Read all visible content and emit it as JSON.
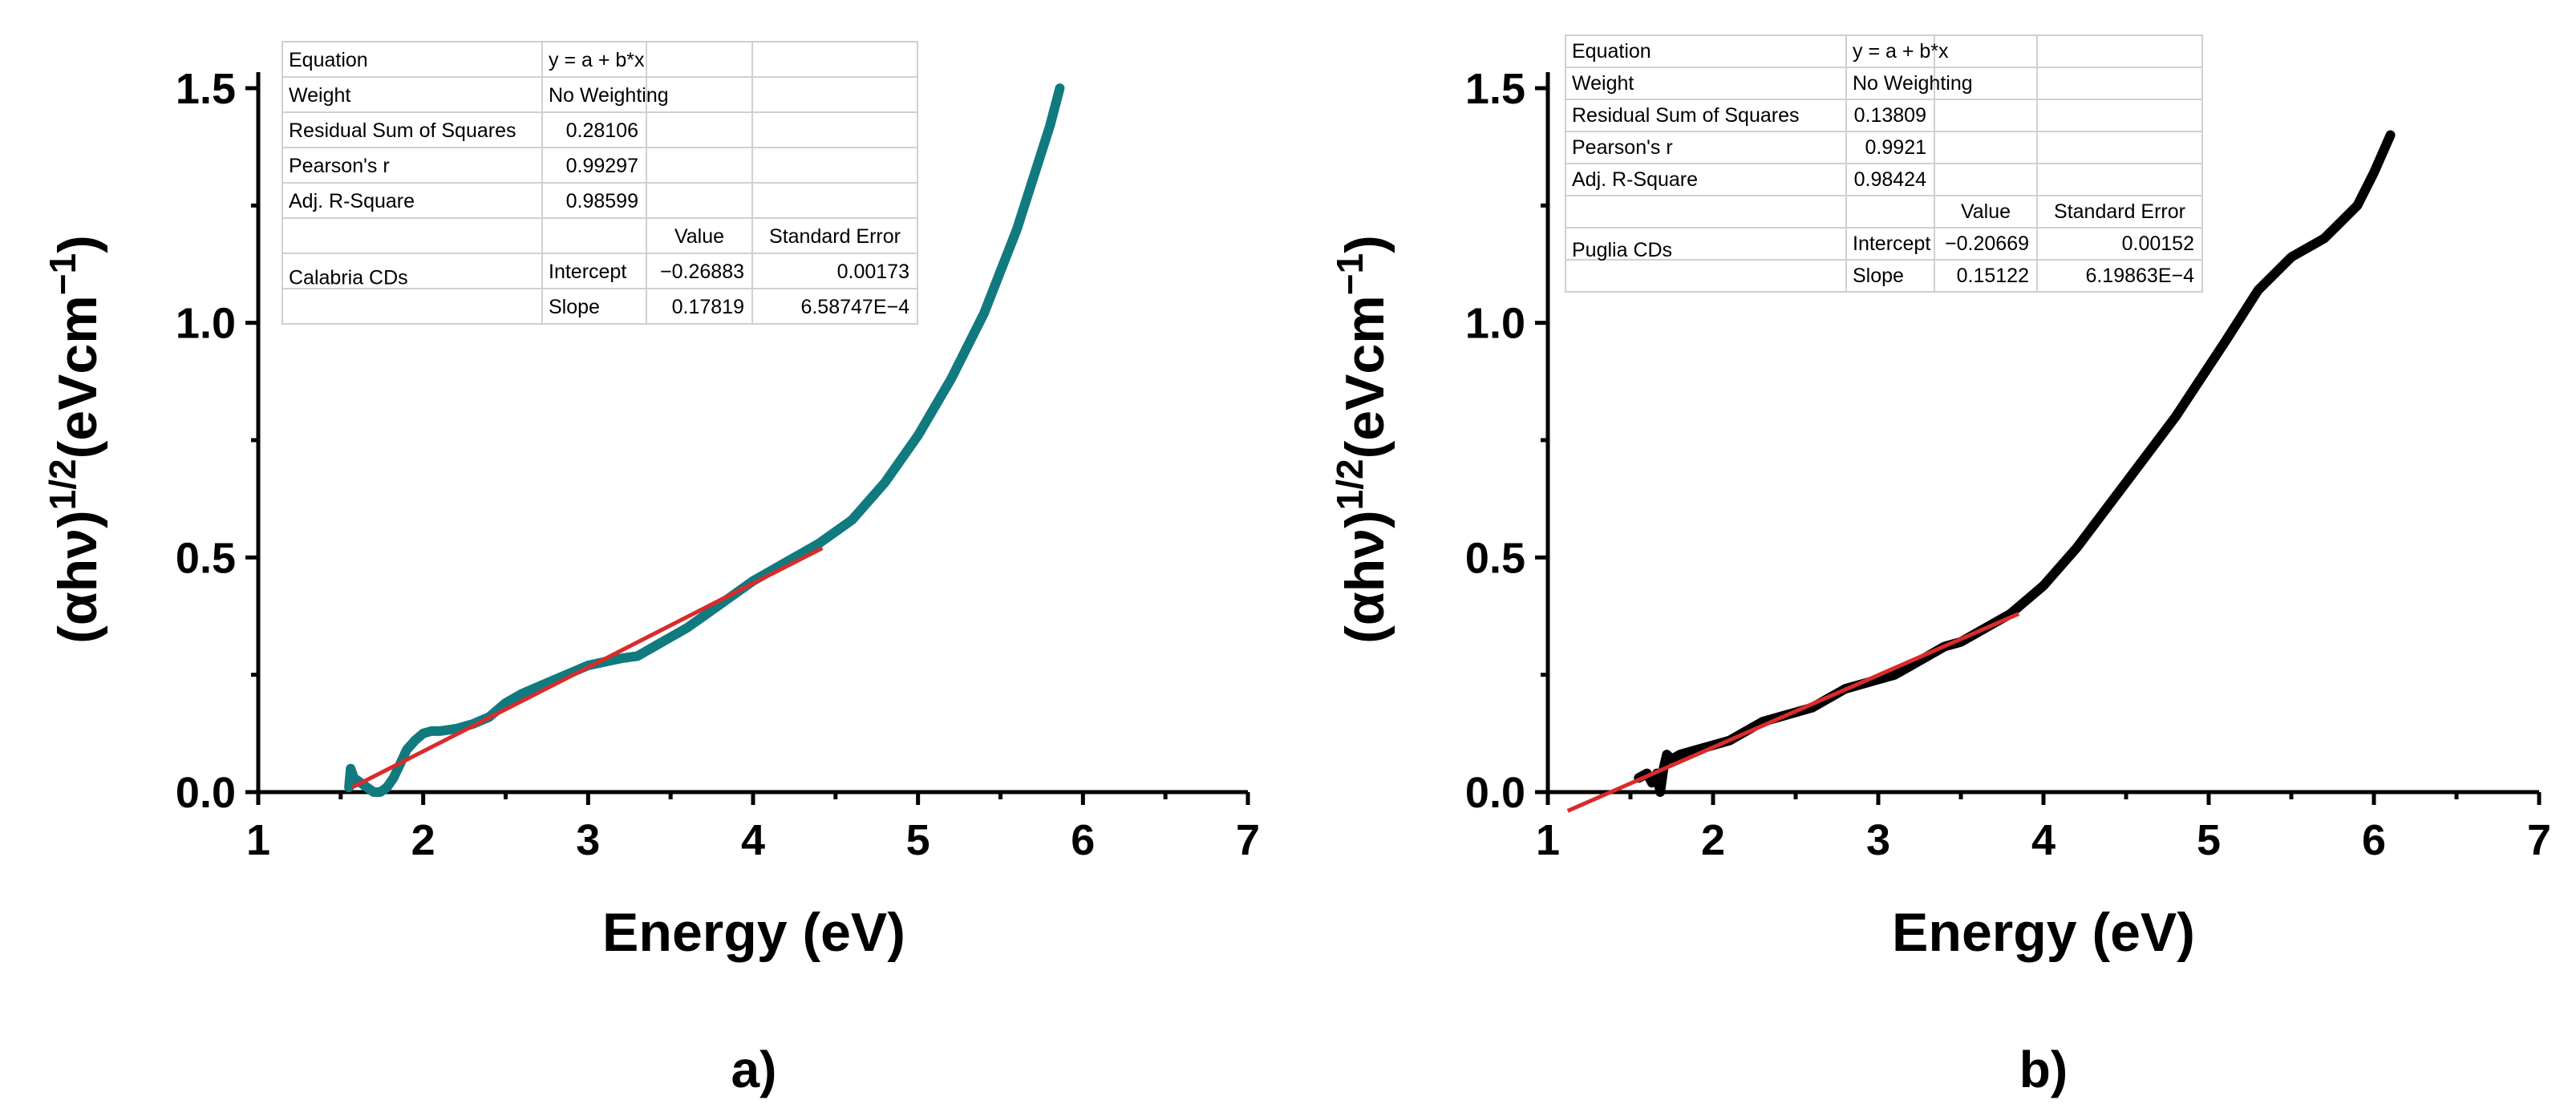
{
  "chart_data": [
    {
      "type": "line",
      "panel_label": "a)",
      "xlabel": "Energy (eV)",
      "ylabel": {
        "base": "(αhν)",
        "exp1": "1/2",
        "unit": "(eVcm",
        "exp2": "−1",
        "close": ")"
      },
      "xlim": [
        1,
        7
      ],
      "ylim": [
        0,
        1.5
      ],
      "xticks": [
        "1",
        "2",
        "3",
        "4",
        "5",
        "6",
        "7"
      ],
      "yticks": [
        "0.0",
        "0.5",
        "1.0",
        "1.5"
      ],
      "colors": {
        "data": "#117a7f",
        "fit": "#d92b2b"
      },
      "series": [
        {
          "name": "Calabria CDs",
          "x": [
            1.55,
            1.56,
            1.58,
            1.62,
            1.66,
            1.7,
            1.74,
            1.78,
            1.82,
            1.86,
            1.9,
            1.95,
            2.0,
            2.05,
            2.1,
            2.2,
            2.3,
            2.4,
            2.5,
            2.6,
            2.8,
            3.0,
            3.2,
            3.3,
            3.4,
            3.5,
            3.6,
            3.8,
            4.0,
            4.2,
            4.4,
            4.6,
            4.8,
            5.0,
            5.2,
            5.4,
            5.6,
            5.8,
            5.86
          ],
          "y": [
            0.01,
            0.05,
            0.03,
            0.02,
            0.01,
            0.0,
            0.0,
            0.01,
            0.03,
            0.06,
            0.09,
            0.11,
            0.125,
            0.13,
            0.13,
            0.135,
            0.145,
            0.16,
            0.19,
            0.21,
            0.24,
            0.27,
            0.285,
            0.29,
            0.31,
            0.33,
            0.35,
            0.4,
            0.45,
            0.49,
            0.53,
            0.58,
            0.66,
            0.76,
            0.88,
            1.02,
            1.2,
            1.42,
            1.5
          ]
        }
      ],
      "fit": {
        "x": [
          1.57,
          4.42
        ],
        "y": [
          0.01,
          0.52
        ]
      },
      "table": {
        "rows": [
          [
            "Equation",
            "y = a + b*x",
            "",
            ""
          ],
          [
            "Weight",
            "No Weighting",
            "",
            ""
          ],
          [
            "Residual Sum of Squares",
            "0.28106",
            "",
            ""
          ],
          [
            "Pearson's r",
            "0.99297",
            "",
            ""
          ],
          [
            "Adj. R-Square",
            "0.98599",
            "",
            ""
          ],
          [
            "",
            "",
            "Value",
            "Standard Error"
          ],
          [
            "Calabria CDs",
            "Intercept",
            "−0.26883",
            "0.00173"
          ],
          [
            "",
            "Slope",
            "0.17819",
            "6.58747E−4"
          ]
        ]
      }
    },
    {
      "type": "line",
      "panel_label": "b)",
      "xlabel": "Energy (eV)",
      "ylabel": {
        "base": "(αhν)",
        "exp1": "1/2",
        "unit": "(eVcm",
        "exp2": "−1",
        "close": ")"
      },
      "xlim": [
        1,
        7
      ],
      "ylim": [
        0,
        1.5
      ],
      "xticks": [
        "1",
        "2",
        "3",
        "4",
        "5",
        "6",
        "7"
      ],
      "yticks": [
        "0.0",
        "0.5",
        "1.0",
        "1.5"
      ],
      "colors": {
        "data": "#000000",
        "fit": "#d92b2b"
      },
      "series": [
        {
          "name": "Puglia CDs",
          "x": [
            1.55,
            1.6,
            1.63,
            1.66,
            1.68,
            1.7,
            1.72,
            1.75,
            1.8,
            1.9,
            2.0,
            2.1,
            2.2,
            2.3,
            2.4,
            2.5,
            2.6,
            2.7,
            2.8,
            2.9,
            3.0,
            3.1,
            3.2,
            3.3,
            3.4,
            3.5,
            3.6,
            3.8,
            4.0,
            4.2,
            4.5,
            4.8,
            5.1,
            5.3,
            5.5,
            5.7,
            5.9,
            6.0,
            6.1
          ],
          "y": [
            0.03,
            0.04,
            0.02,
            0.04,
            0.0,
            0.05,
            0.08,
            0.07,
            0.08,
            0.09,
            0.1,
            0.11,
            0.13,
            0.15,
            0.16,
            0.17,
            0.18,
            0.2,
            0.22,
            0.23,
            0.24,
            0.25,
            0.27,
            0.29,
            0.31,
            0.32,
            0.34,
            0.38,
            0.44,
            0.52,
            0.66,
            0.8,
            0.96,
            1.07,
            1.14,
            1.18,
            1.25,
            1.32,
            1.4
          ]
        }
      ],
      "fit": {
        "x": [
          1.12,
          3.85
        ],
        "y": [
          -0.04,
          0.38
        ]
      },
      "table": {
        "rows": [
          [
            "Equation",
            "y = a + b*x",
            "",
            ""
          ],
          [
            "Weight",
            "No Weighting",
            "",
            ""
          ],
          [
            "Residual Sum of Squares",
            "0.13809",
            "",
            ""
          ],
          [
            "Pearson's r",
            "0.9921",
            "",
            ""
          ],
          [
            "Adj. R-Square",
            "0.98424",
            "",
            ""
          ],
          [
            "",
            "",
            "Value",
            "Standard Error"
          ],
          [
            "Puglia CDs",
            "Intercept",
            "−0.20669",
            "0.00152"
          ],
          [
            "",
            "Slope",
            "0.15122",
            "6.19863E−4"
          ]
        ]
      }
    }
  ]
}
